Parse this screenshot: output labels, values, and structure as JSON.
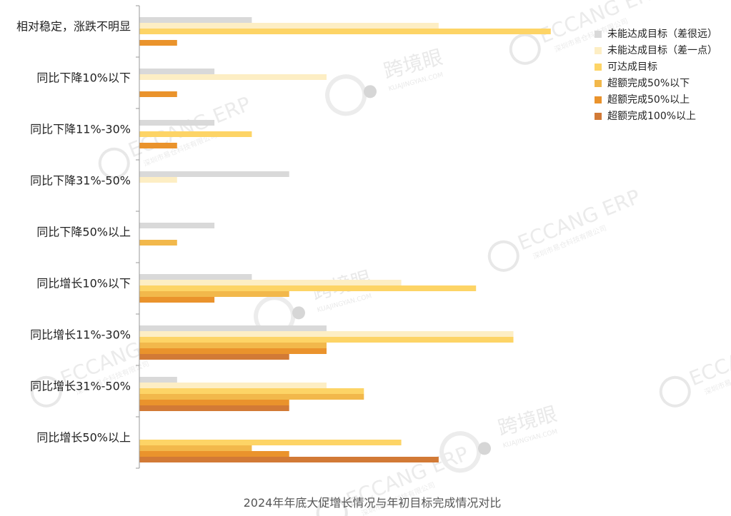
{
  "chart_data": {
    "type": "bar",
    "orientation": "horizontal",
    "title": "2024年年底大促增长情况与年初目标完成情况对比",
    "xlim": [
      0,
      10.5
    ],
    "categories": [
      "相对稳定，涨跌不明显",
      "同比下降10%以下",
      "同比下降11%-30%",
      "同比下降31%-50%",
      "同比下降50%以上",
      "同比增长10%以下",
      "同比增长11%-30%",
      "同比增长31%-50%",
      "同比增长50%以上"
    ],
    "series": [
      {
        "name": "未能达成目标（差很远）",
        "color": "#d9d9d9",
        "values": [
          3,
          2,
          2,
          4,
          2,
          3,
          5,
          1,
          0
        ]
      },
      {
        "name": "未能达成目标（差一点）",
        "color": "#fdeec4",
        "values": [
          8,
          5,
          0,
          1,
          0,
          7,
          10,
          5,
          0
        ]
      },
      {
        "name": "可达成目标",
        "color": "#fdd466",
        "values": [
          11,
          0,
          3,
          0,
          0,
          9,
          10,
          6,
          7
        ]
      },
      {
        "name": "超额完成50%以下",
        "color": "#f2b84b",
        "values": [
          0,
          0,
          0,
          0,
          1,
          4,
          5,
          6,
          3
        ]
      },
      {
        "name": "超额完成50%以上",
        "color": "#ea932c",
        "values": [
          1,
          1,
          1,
          0,
          0,
          2,
          5,
          4,
          4
        ]
      },
      {
        "name": "超额完成100%以上",
        "color": "#d27a36",
        "values": [
          0,
          0,
          0,
          0,
          0,
          0,
          4,
          4,
          8
        ]
      }
    ],
    "legend_position": "right",
    "grid": false
  },
  "watermarks": {
    "brand_en": "ECCANG ERP",
    "brand_cn": "深圳市易仓科技有限公司",
    "kjy_cn": "跨境眼",
    "kjy_en": "KUAJINGYAN.COM"
  }
}
